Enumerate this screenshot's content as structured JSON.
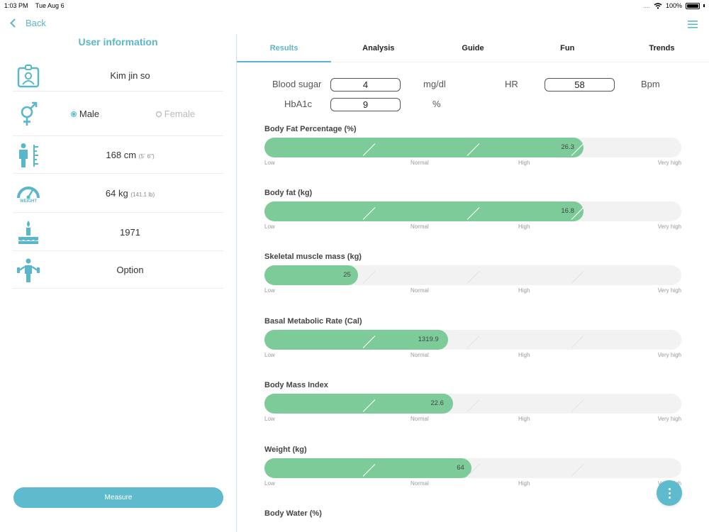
{
  "status": {
    "time": "1:03 PM",
    "date": "Tue Aug 6",
    "signal": "....",
    "battery": "100%"
  },
  "nav": {
    "back_label": "Back"
  },
  "user": {
    "title": "User information",
    "name": "Kim jin so",
    "gender_male": "Male",
    "gender_female": "Female",
    "height": "168 cm",
    "height_imperial": "(5´ 6\")",
    "weight": "64 kg",
    "weight_imperial": "(141.1 lb)",
    "weight_icon_label": "WEIGHT",
    "birth_year": "1971",
    "option": "Option",
    "measure_label": "Measure"
  },
  "tabs": [
    "Results",
    "Analysis",
    "Guide",
    "Fun",
    "Trends"
  ],
  "vitals": {
    "blood_sugar_label": "Blood sugar",
    "blood_sugar": "4",
    "blood_sugar_unit": "mg/dl",
    "hr_label": "HR",
    "hr": "58",
    "hr_unit": "Bpm",
    "hba1c_label": "HbA1c",
    "hba1c": "9",
    "hba1c_unit": "%"
  },
  "scale_labels": [
    "Low",
    "Normal",
    "High",
    "Very high"
  ],
  "metrics": [
    {
      "title": "Body Fat Percentage (%)",
      "value": "26.3",
      "level": 0.765
    },
    {
      "title": "Body fat (kg)",
      "value": "16.8",
      "level": 0.765
    },
    {
      "title": "Skeletal muscle mass (kg)",
      "value": "25",
      "level": 0.225
    },
    {
      "title": "Basal Metabolic Rate (Cal)",
      "value": "1319.9",
      "level": 0.44
    },
    {
      "title": "Body Mass Index",
      "value": "22.6",
      "level": 0.452
    },
    {
      "title": "Weight (kg)",
      "value": "64",
      "level": 0.497
    },
    {
      "title": "Body Water (%)"
    }
  ],
  "icons": {
    "back": "chevron-left-icon",
    "menu": "hamburger-menu-icon",
    "id": "id-card-icon",
    "gender": "gender-icon",
    "height": "height-icon",
    "weight": "scale-icon",
    "birthday": "birthday-cake-icon",
    "option": "activity-icon",
    "fab": "more-vertical-icon"
  },
  "colors": {
    "accent": "#5ab7c9",
    "bar": "#7ecb9a",
    "track": "#f2f2f2"
  }
}
